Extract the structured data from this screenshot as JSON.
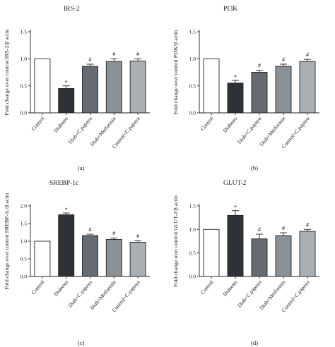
{
  "chart_data": [
    {
      "type": "bar",
      "panel": "(a)",
      "title": "IRS-2",
      "ylabel": "Fold change over control IRS-2/β actin",
      "ylim": [
        0,
        1.5
      ],
      "yticks": [
        "0.0",
        "0.5",
        "1.0",
        "1.5"
      ],
      "categories": [
        "Control",
        "Diabetes",
        "Diab+C.papaya",
        "Diab+Metformin",
        "Control+C.papaya"
      ],
      "values": [
        1.0,
        0.45,
        0.86,
        0.95,
        0.96
      ],
      "errors": [
        0,
        0.05,
        0.04,
        0.05,
        0.04
      ],
      "significance": [
        "",
        "*",
        "#",
        "#",
        "#"
      ],
      "colors": [
        "#ffffff",
        "#2e3237",
        "#656b70",
        "#8a9196",
        "#a9afb3"
      ]
    },
    {
      "type": "bar",
      "panel": "(b)",
      "title": "PI3K",
      "ylabel": "Fold change over control PI3K/β actin",
      "ylim": [
        0,
        1.5
      ],
      "yticks": [
        "0.0",
        "0.5",
        "1.0",
        "1.5"
      ],
      "categories": [
        "Control",
        "Diabetes",
        "Diab+C.papaya",
        "Diab+Metformin",
        "Control+C.papaya"
      ],
      "values": [
        1.0,
        0.55,
        0.75,
        0.86,
        0.95
      ],
      "errors": [
        0,
        0.05,
        0.04,
        0.04,
        0.04
      ],
      "significance": [
        "",
        "*",
        "#",
        "#",
        "#"
      ],
      "colors": [
        "#ffffff",
        "#2e3237",
        "#656b70",
        "#8a9196",
        "#a9afb3"
      ]
    },
    {
      "type": "bar",
      "panel": "(c)",
      "title": "SREBP-1c",
      "ylabel": "Fold change over control SREBP-1c/β actin",
      "ylim": [
        0,
        2.0
      ],
      "yticks": [
        "0.0",
        "0.5",
        "1.0",
        "1.5",
        "2.0"
      ],
      "categories": [
        "Control",
        "Diabetes",
        "Diab+C.papaya",
        "Diab+Metformin",
        "Control+C.papaya"
      ],
      "values": [
        1.0,
        1.75,
        1.16,
        1.05,
        0.97
      ],
      "errors": [
        0,
        0.05,
        0.04,
        0.04,
        0.04
      ],
      "significance": [
        "",
        "*",
        "#",
        "#",
        "#"
      ],
      "colors": [
        "#ffffff",
        "#2e3237",
        "#656b70",
        "#8a9196",
        "#a9afb3"
      ]
    },
    {
      "type": "bar",
      "panel": "(d)",
      "title": "GLUT-2",
      "ylabel": "Fold change over control GLUT-2/β actin",
      "ylim": [
        0,
        1.5
      ],
      "yticks": [
        "0.0",
        "0.5",
        "1.0",
        "1.5"
      ],
      "categories": [
        "Control",
        "Diabetes",
        "Diab+C.papaya",
        "Diab+Metformin",
        "Control+C.papaya"
      ],
      "values": [
        1.0,
        1.3,
        0.8,
        0.87,
        0.96
      ],
      "errors": [
        0,
        0.1,
        0.1,
        0.06,
        0.04
      ],
      "significance": [
        "",
        "*",
        "#",
        "#",
        "#"
      ],
      "colors": [
        "#ffffff",
        "#2e3237",
        "#656b70",
        "#8a9196",
        "#a9afb3"
      ]
    }
  ]
}
